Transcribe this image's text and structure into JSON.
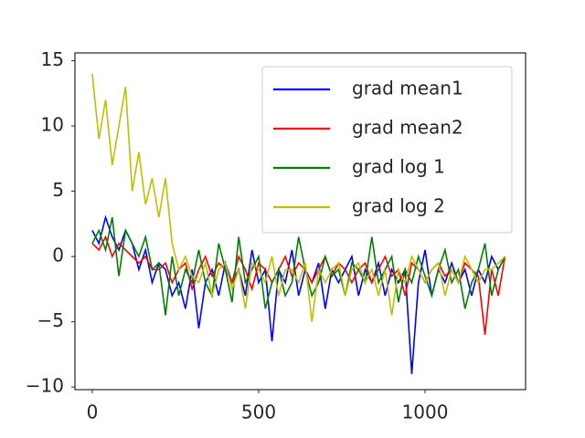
{
  "chart_data": {
    "type": "line",
    "x": [
      0,
      20,
      40,
      60,
      80,
      100,
      120,
      140,
      160,
      180,
      200,
      220,
      240,
      260,
      280,
      300,
      320,
      340,
      360,
      380,
      400,
      420,
      440,
      460,
      480,
      500,
      520,
      540,
      560,
      580,
      600,
      620,
      640,
      660,
      680,
      700,
      720,
      740,
      760,
      780,
      800,
      820,
      840,
      860,
      880,
      900,
      920,
      940,
      960,
      980,
      1000,
      1020,
      1040,
      1060,
      1080,
      1100,
      1120,
      1140,
      1160,
      1180,
      1200,
      1220,
      1240
    ],
    "series": [
      {
        "name": "grad mean1",
        "color": "#0000ff",
        "values": [
          2,
          1,
          3,
          1.5,
          0.5,
          2,
          1,
          -1,
          0.5,
          -2,
          -0.5,
          -1,
          -3,
          -2,
          -4,
          -1,
          -5.5,
          -2,
          -1,
          -3,
          -0.5,
          -2,
          -1,
          -3,
          0.5,
          -2,
          -1,
          -6.5,
          -1,
          -2,
          0.5,
          -3,
          -1,
          -2,
          -0.5,
          -4,
          -1,
          -2,
          -1,
          0,
          -3,
          -1,
          -2,
          -0.5,
          -3,
          -1,
          -2,
          -1,
          -9,
          -2,
          0.5,
          -3,
          -1,
          -2,
          -0.5,
          -2,
          -1,
          -3,
          -1,
          -2,
          0,
          -1,
          0
        ]
      },
      {
        "name": "grad mean2",
        "color": "#ff0000",
        "values": [
          1,
          0.5,
          1.5,
          0,
          1,
          0.5,
          0,
          -0.5,
          0,
          -1,
          -1,
          -0.5,
          -2,
          -1,
          -0.5,
          -2.5,
          -1,
          0,
          -1.5,
          -0.5,
          -1,
          -2,
          0,
          -1,
          -2.5,
          -0.5,
          -1,
          -2,
          -1,
          0,
          -1.5,
          -0.5,
          -1,
          -2,
          -1,
          0,
          -1.5,
          -0.5,
          -1,
          -2,
          -1,
          -0.5,
          -2,
          -1,
          0,
          -1.5,
          -1,
          -3,
          -0.5,
          -1,
          -2,
          -1,
          -0.5,
          -1.5,
          -1,
          -2,
          -0.5,
          -1,
          -1.5,
          -6,
          -1,
          -3,
          0
        ]
      },
      {
        "name": "grad log 1",
        "color": "#008000",
        "values": [
          1,
          2,
          0.5,
          3,
          -1.5,
          2,
          1,
          0,
          1.5,
          -1,
          -0.5,
          -4.5,
          0,
          -3,
          -1,
          -2,
          0.5,
          -2,
          -3,
          1,
          -1,
          -3.5,
          1.5,
          -2,
          -1,
          0,
          -4,
          -2,
          -1,
          -3,
          -2,
          1.5,
          -1,
          -3,
          -2,
          0,
          -1.5,
          -1,
          -3,
          -0.5,
          -1,
          -2,
          1.5,
          -2,
          -1,
          0,
          -3.5,
          -1,
          -2,
          0,
          -1.5,
          -3,
          -1,
          0.5,
          -2,
          -1,
          -4,
          -2,
          -1,
          1,
          -3,
          -1,
          0
        ]
      },
      {
        "name": "grad log 2",
        "color": "#bfbf00",
        "values": [
          14,
          9,
          12,
          7,
          10,
          13,
          5,
          8,
          4,
          6,
          3,
          6,
          1,
          -1,
          0,
          -1.5,
          -2,
          -0.5,
          -3,
          -1,
          -0.5,
          -2.5,
          -1,
          -4,
          -0.5,
          -1,
          -2,
          0,
          -3,
          -1,
          -1,
          -2,
          -0.5,
          -5,
          -1,
          -2,
          -1,
          -0.5,
          -3,
          -1,
          -0.5,
          -2,
          -1,
          -3,
          -1,
          -4.5,
          -1,
          -2,
          0,
          -1,
          -2,
          -1,
          -0.5,
          -3,
          -1,
          -2,
          0,
          -1,
          -2,
          -1,
          -1,
          -0.5,
          0
        ]
      }
    ],
    "xlim": [
      -52,
      1302
    ],
    "ylim": [
      -10.2,
      15.6
    ],
    "xticks": [
      0,
      500,
      1000
    ],
    "yticks": [
      {
        "value": -10,
        "label": "−10"
      },
      {
        "value": -5,
        "label": "−5"
      },
      0,
      5,
      10,
      15
    ],
    "legend": "upper right"
  }
}
